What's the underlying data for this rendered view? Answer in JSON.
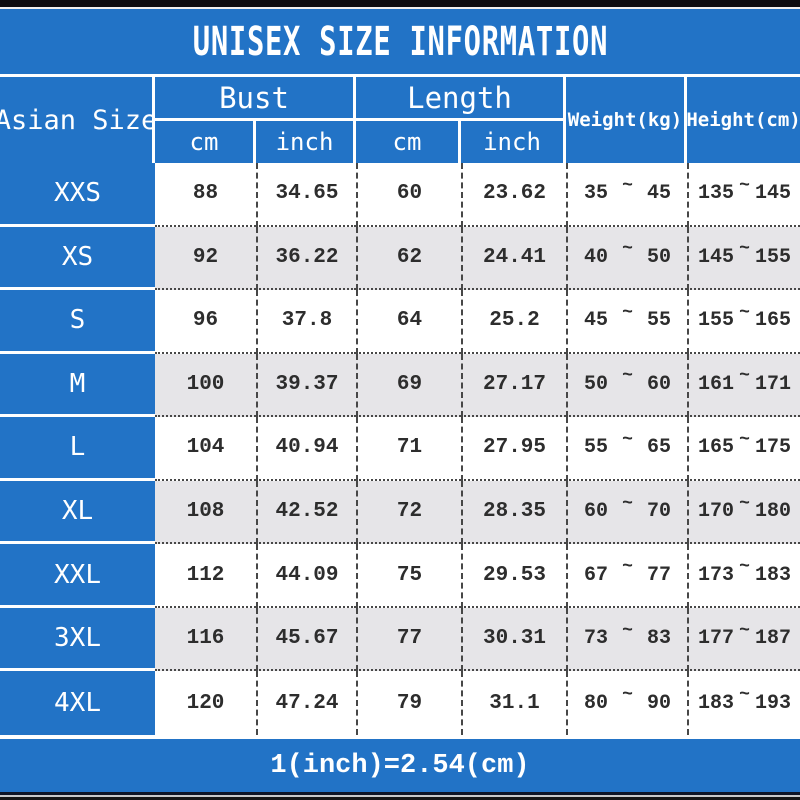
{
  "colors": {
    "banner_blue": "#2273c6",
    "stripe_gray": "#e6e5e8",
    "grid_line": "#474747",
    "data_text": "#2d2d2d",
    "top_bar": "#0d0d12"
  },
  "chart_data": {
    "type": "table",
    "title": "UNISEX SIZE INFORMATION",
    "column_groups": [
      {
        "label": "Asian Size",
        "span": 1
      },
      {
        "label": "Bust",
        "span": 2
      },
      {
        "label": "Length",
        "span": 2
      },
      {
        "label": "Weight(kg)",
        "span": 1
      },
      {
        "label": "Height(cm)",
        "span": 1
      }
    ],
    "sub_headers": [
      "cm",
      "inch",
      "cm",
      "inch"
    ],
    "range_separator": "~",
    "rows": [
      {
        "size": "XXS",
        "bust_cm": "88",
        "bust_inch": "34.65",
        "length_cm": "60",
        "length_inch": "23.62",
        "weight_min": "35",
        "weight_max": "45",
        "height_min": "135",
        "height_max": "145"
      },
      {
        "size": "XS",
        "bust_cm": "92",
        "bust_inch": "36.22",
        "length_cm": "62",
        "length_inch": "24.41",
        "weight_min": "40",
        "weight_max": "50",
        "height_min": "145",
        "height_max": "155"
      },
      {
        "size": "S",
        "bust_cm": "96",
        "bust_inch": "37.8",
        "length_cm": "64",
        "length_inch": "25.2",
        "weight_min": "45",
        "weight_max": "55",
        "height_min": "155",
        "height_max": "165"
      },
      {
        "size": "M",
        "bust_cm": "100",
        "bust_inch": "39.37",
        "length_cm": "69",
        "length_inch": "27.17",
        "weight_min": "50",
        "weight_max": "60",
        "height_min": "161",
        "height_max": "171"
      },
      {
        "size": "L",
        "bust_cm": "104",
        "bust_inch": "40.94",
        "length_cm": "71",
        "length_inch": "27.95",
        "weight_min": "55",
        "weight_max": "65",
        "height_min": "165",
        "height_max": "175"
      },
      {
        "size": "XL",
        "bust_cm": "108",
        "bust_inch": "42.52",
        "length_cm": "72",
        "length_inch": "28.35",
        "weight_min": "60",
        "weight_max": "70",
        "height_min": "170",
        "height_max": "180"
      },
      {
        "size": "XXL",
        "bust_cm": "112",
        "bust_inch": "44.09",
        "length_cm": "75",
        "length_inch": "29.53",
        "weight_min": "67",
        "weight_max": "77",
        "height_min": "173",
        "height_max": "183"
      },
      {
        "size": "3XL",
        "bust_cm": "116",
        "bust_inch": "45.67",
        "length_cm": "77",
        "length_inch": "30.31",
        "weight_min": "73",
        "weight_max": "83",
        "height_min": "177",
        "height_max": "187"
      },
      {
        "size": "4XL",
        "bust_cm": "120",
        "bust_inch": "47.24",
        "length_cm": "79",
        "length_inch": "31.1",
        "weight_min": "80",
        "weight_max": "90",
        "height_min": "183",
        "height_max": "193"
      }
    ],
    "footnote": "1(inch)=2.54(cm)"
  }
}
